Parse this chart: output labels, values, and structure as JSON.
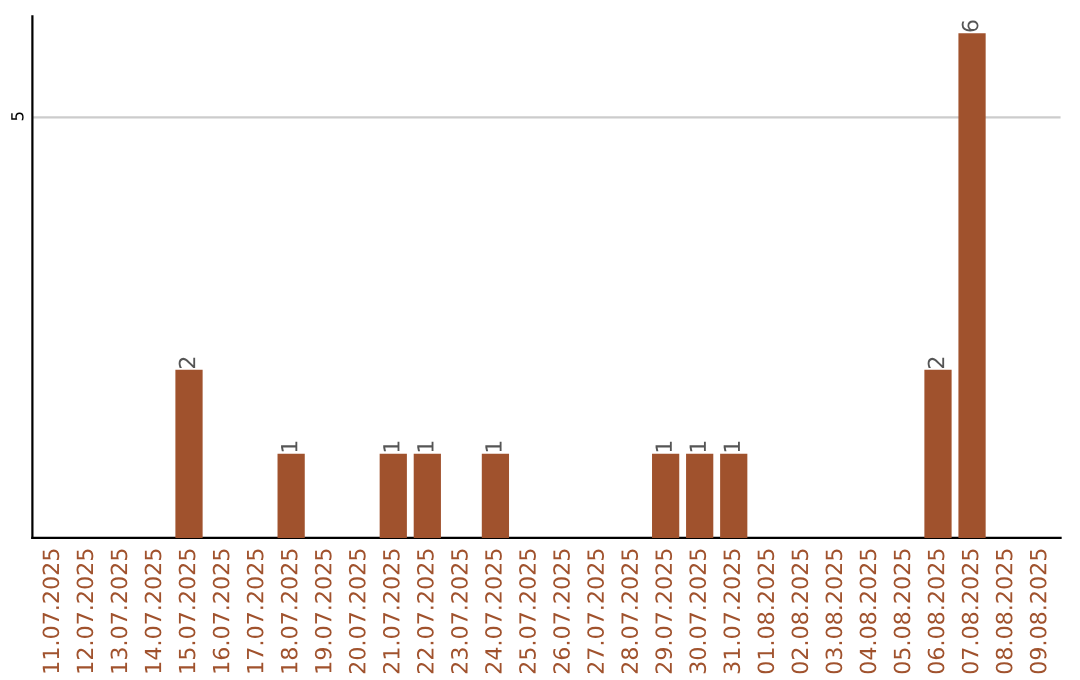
{
  "chart_data": {
    "type": "bar",
    "categories": [
      "11.07.2025",
      "12.07.2025",
      "13.07.2025",
      "14.07.2025",
      "15.07.2025",
      "16.07.2025",
      "17.07.2025",
      "18.07.2025",
      "19.07.2025",
      "20.07.2025",
      "21.07.2025",
      "22.07.2025",
      "23.07.2025",
      "24.07.2025",
      "25.07.2025",
      "26.07.2025",
      "27.07.2025",
      "28.07.2025",
      "29.07.2025",
      "30.07.2025",
      "31.07.2025",
      "01.08.2025",
      "02.08.2025",
      "03.08.2025",
      "04.08.2025",
      "05.08.2025",
      "06.08.2025",
      "07.08.2025",
      "08.08.2025",
      "09.08.2025"
    ],
    "values": [
      0,
      0,
      0,
      0,
      2,
      0,
      0,
      1,
      0,
      0,
      1,
      1,
      0,
      1,
      0,
      0,
      0,
      0,
      1,
      1,
      1,
      0,
      0,
      0,
      0,
      0,
      2,
      6,
      0,
      0
    ],
    "value_labels": [
      null,
      null,
      null,
      null,
      "2",
      null,
      null,
      "1",
      null,
      null,
      "1",
      "1",
      null,
      "1",
      null,
      null,
      null,
      null,
      "1",
      "1",
      "1",
      null,
      null,
      null,
      null,
      null,
      "2",
      "6",
      null,
      null
    ],
    "color": "#a0522d",
    "ylim": [
      0,
      6.2
    ],
    "yticks": [
      5
    ],
    "grid": "y"
  }
}
